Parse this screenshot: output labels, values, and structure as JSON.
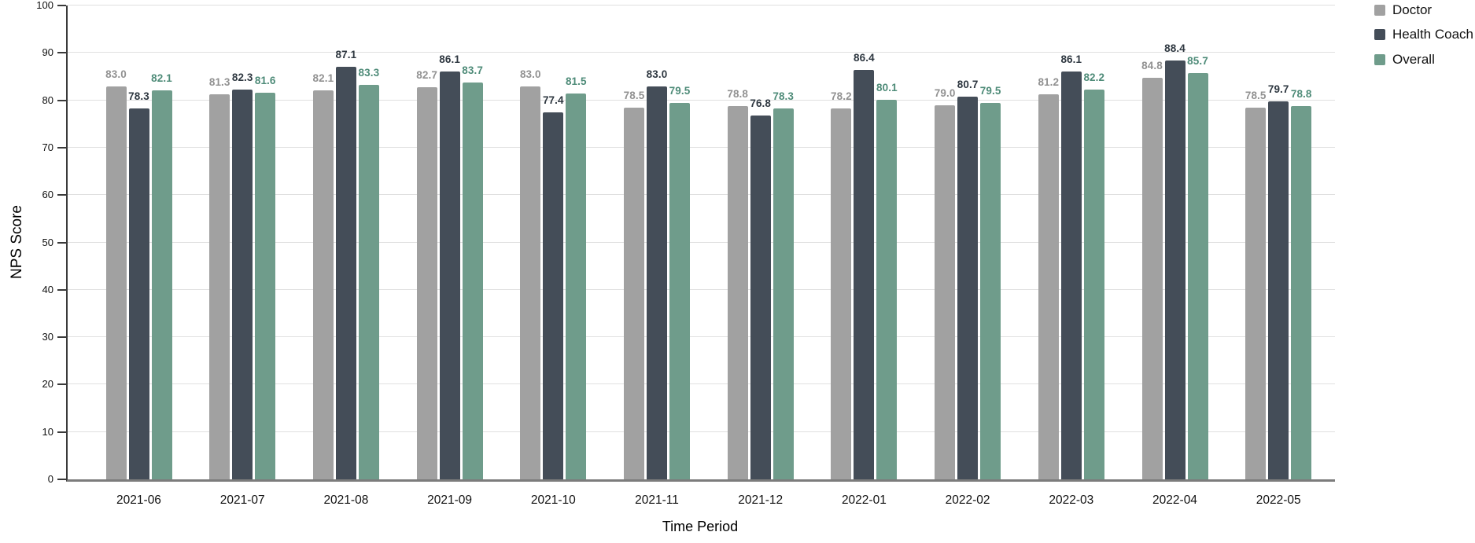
{
  "chart_data": {
    "type": "bar",
    "title": "",
    "xlabel": "Time Period",
    "ylabel": "NPS Score",
    "ylim": [
      0,
      100
    ],
    "ytick_step": 10,
    "grid": true,
    "legend_position": "top-right",
    "value_labels_shown": true,
    "value_label_decimals": 1,
    "categories": [
      "2021-06",
      "2021-07",
      "2021-08",
      "2021-09",
      "2021-10",
      "2021-11",
      "2021-12",
      "2022-01",
      "2022-02",
      "2022-03",
      "2022-04",
      "2022-05"
    ],
    "series": [
      {
        "name": "Doctor",
        "color": "#a1a1a1",
        "label_color": "#919191",
        "values": [
          83.0,
          81.3,
          82.1,
          82.7,
          83.0,
          78.5,
          78.8,
          78.2,
          79.0,
          81.2,
          84.8,
          78.5
        ]
      },
      {
        "name": "Health Coach",
        "color": "#444d58",
        "label_color": "#2e3740",
        "values": [
          78.3,
          82.3,
          87.1,
          86.1,
          77.4,
          83.0,
          76.8,
          86.4,
          80.7,
          86.1,
          88.4,
          79.7
        ]
      },
      {
        "name": "Overall",
        "color": "#6f9c8b",
        "label_color": "#4e8b78",
        "values": [
          82.1,
          81.6,
          83.3,
          83.7,
          81.5,
          79.5,
          78.3,
          80.1,
          79.5,
          82.2,
          85.7,
          78.8
        ]
      }
    ]
  }
}
